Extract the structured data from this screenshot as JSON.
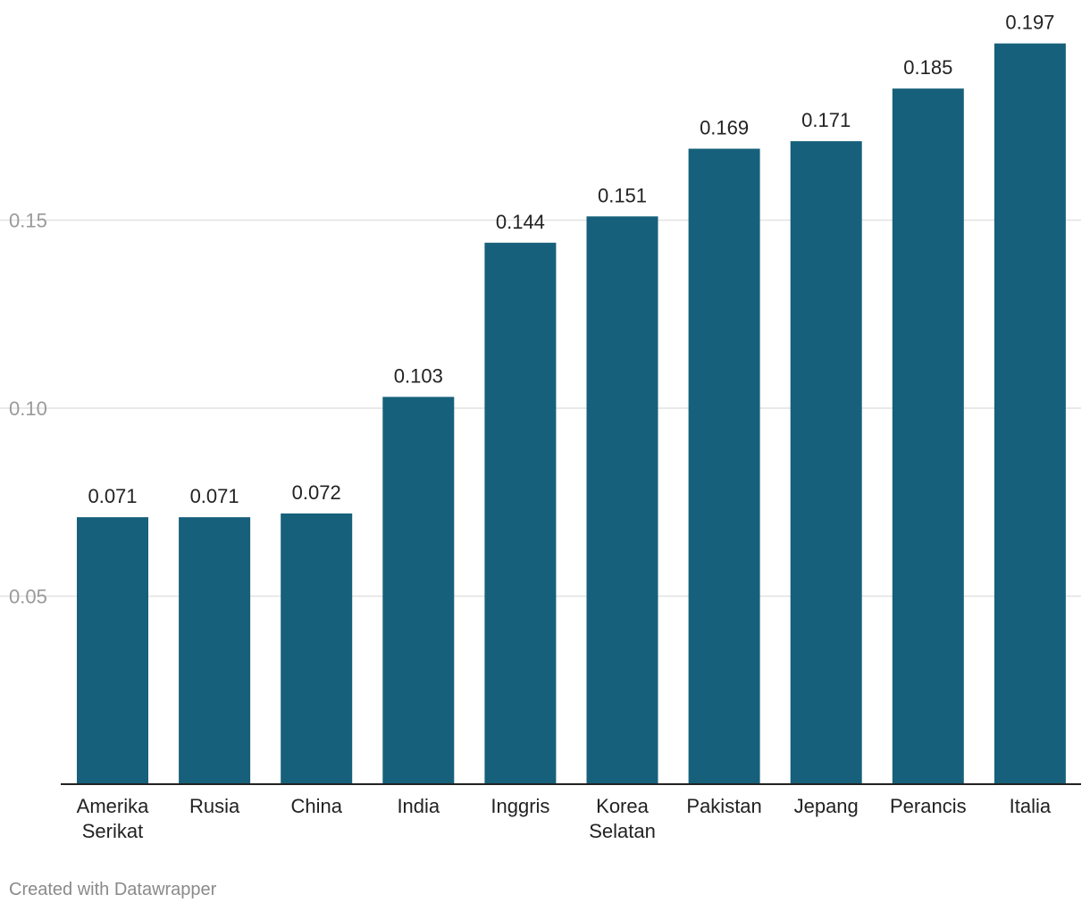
{
  "chart_data": {
    "type": "bar",
    "title": "",
    "xlabel": "",
    "ylabel": "",
    "categories": [
      [
        "Amerika",
        "Serikat"
      ],
      [
        "Rusia"
      ],
      [
        "China"
      ],
      [
        "India"
      ],
      [
        "Inggris"
      ],
      [
        "Korea",
        "Selatan"
      ],
      [
        "Pakistan"
      ],
      [
        "Jepang"
      ],
      [
        "Perancis"
      ],
      [
        "Italia"
      ]
    ],
    "values": [
      0.071,
      0.071,
      0.072,
      0.103,
      0.144,
      0.151,
      0.169,
      0.171,
      0.185,
      0.197
    ],
    "value_labels": [
      "0.071",
      "0.071",
      "0.072",
      "0.103",
      "0.144",
      "0.151",
      "0.169",
      "0.171",
      "0.185",
      "0.197"
    ],
    "ylim": [
      0,
      0.2
    ],
    "yticks": [
      0.05,
      0.1,
      0.15
    ],
    "ytick_labels": [
      "0.05",
      "0.10",
      "0.15"
    ],
    "grid": true,
    "bar_color": "#17607b",
    "grid_color": "#e2e2e2",
    "axis_color": "#222222",
    "tick_label_color": "#9a9a9a",
    "label_color": "#222222"
  },
  "footer": {
    "credit": "Created with Datawrapper"
  }
}
